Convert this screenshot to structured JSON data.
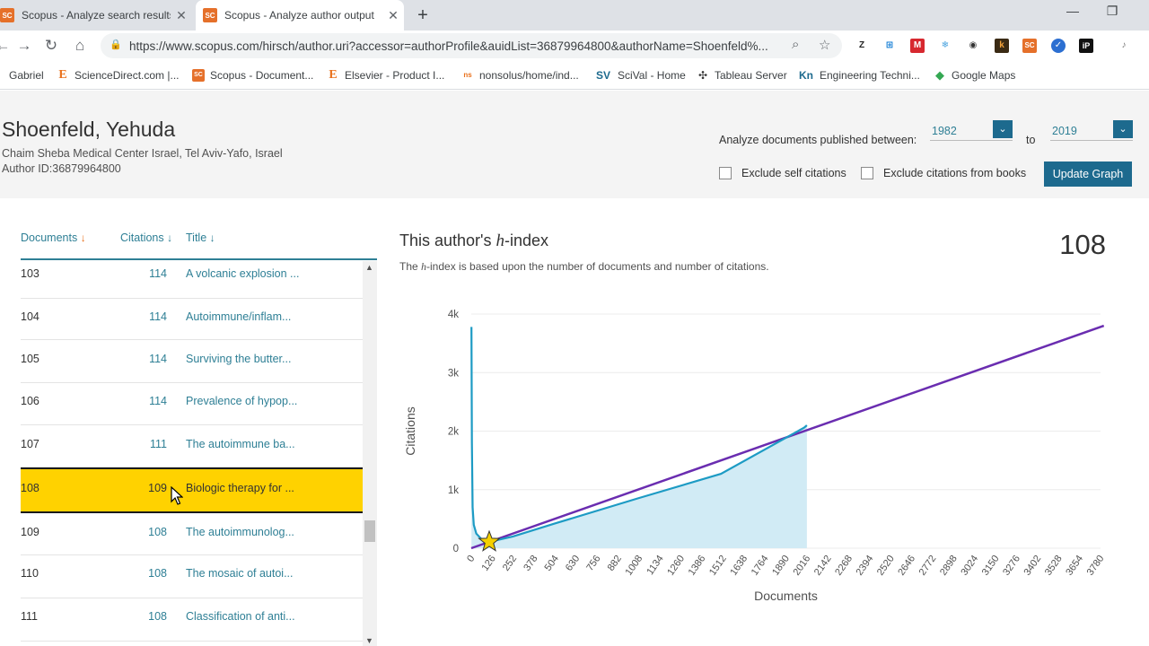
{
  "browser": {
    "tabs": [
      {
        "title": "Scopus - Analyze search results | ...",
        "favicon": "SC",
        "active": false
      },
      {
        "title": "Scopus - Analyze author output",
        "favicon": "SC",
        "active": true
      }
    ],
    "url": "https://www.scopus.com/hirsch/author.uri?accessor=authorProfile&auidList=36879964800&authorName=Shoenfeld%...",
    "bookmarks": [
      {
        "label": "Gabriel",
        "icon": ""
      },
      {
        "label": "ScienceDirect.com |...",
        "icon": "E"
      },
      {
        "label": "Scopus - Document...",
        "icon": "SC"
      },
      {
        "label": "Elsevier - Product I...",
        "icon": "E"
      },
      {
        "label": "nonsolus/home/ind...",
        "icon": "ns"
      },
      {
        "label": "SciVal - Home",
        "icon": "SV"
      },
      {
        "label": "Tableau Server",
        "icon": "✣"
      },
      {
        "label": "Engineering Techni...",
        "icon": "Kn"
      },
      {
        "label": "Google Maps",
        "icon": "◆"
      }
    ],
    "extensions": [
      "Z",
      "⊞",
      "M",
      "❄",
      "◉",
      "k",
      "SC",
      "✓",
      "iP",
      "♪"
    ]
  },
  "author": {
    "name": "Shoenfeld, Yehuda",
    "affiliation": "Chaim Sheba Medical Center Israel, Tel Aviv-Yafo, Israel",
    "author_id": "Author ID:36879964800"
  },
  "filters": {
    "range_label": "Analyze documents published between:",
    "from_year": "1982",
    "to_label": "to",
    "to_year": "2019",
    "exclude_self": "Exclude self citations",
    "exclude_books": "Exclude citations from books",
    "update_button": "Update Graph"
  },
  "list": {
    "col_documents": "Documents",
    "col_citations": "Citations",
    "col_title": "Title",
    "rows": [
      {
        "rank": "103",
        "citations": "114",
        "title": "A volcanic explosion ..."
      },
      {
        "rank": "104",
        "citations": "114",
        "title": "Autoimmune/inflam..."
      },
      {
        "rank": "105",
        "citations": "114",
        "title": "Surviving the butter..."
      },
      {
        "rank": "106",
        "citations": "114",
        "title": "Prevalence of hypop..."
      },
      {
        "rank": "107",
        "citations": "111",
        "title": "The autoimmune ba..."
      },
      {
        "rank": "108",
        "citations": "109",
        "title": "Biologic therapy for ...",
        "highlighted": true
      },
      {
        "rank": "109",
        "citations": "108",
        "title": "The autoimmunolog..."
      },
      {
        "rank": "110",
        "citations": "108",
        "title": "The mosaic of autoi..."
      },
      {
        "rank": "111",
        "citations": "108",
        "title": "Classification of anti..."
      }
    ]
  },
  "chart_header": {
    "title_prefix": "This author's ",
    "title_italic": "h",
    "title_suffix": "-index",
    "subtitle_prefix": "The ",
    "subtitle_italic": "h",
    "subtitle_suffix": "-index is based upon the number of documents and number of citations.",
    "hindex_value": "108"
  },
  "chart_data": {
    "type": "line",
    "xlabel": "Documents",
    "ylabel": "Citations",
    "xlim": [
      0,
      3780
    ],
    "ylim": [
      0,
      4000
    ],
    "x_ticks": [
      0,
      126,
      252,
      378,
      504,
      630,
      756,
      882,
      1008,
      1134,
      1260,
      1386,
      1512,
      1638,
      1764,
      1890,
      2016,
      2142,
      2268,
      2394,
      2520,
      2646,
      2772,
      2898,
      3024,
      3150,
      3276,
      3402,
      3528,
      3654,
      3780
    ],
    "y_ticks": [
      {
        "value": 0,
        "label": "0"
      },
      {
        "value": 1000,
        "label": "1k"
      },
      {
        "value": 2000,
        "label": "2k"
      },
      {
        "value": 3000,
        "label": "3k"
      },
      {
        "value": 4000,
        "label": "4k"
      }
    ],
    "series": [
      {
        "role": "citations",
        "color": "#1d9bc4",
        "fill": "#d1ebf5",
        "points": [
          [
            1,
            3780
          ],
          [
            4,
            1800
          ],
          [
            8,
            700
          ],
          [
            15,
            400
          ],
          [
            30,
            250
          ],
          [
            60,
            160
          ],
          [
            108,
            108
          ],
          [
            250,
            200
          ],
          [
            500,
            420
          ],
          [
            1000,
            850
          ],
          [
            1500,
            1270
          ],
          [
            2000,
            2060
          ],
          [
            2016,
            2100
          ]
        ]
      },
      {
        "role": "diagonal",
        "color": "#6a2db0",
        "points": [
          [
            0,
            0
          ],
          [
            3800,
            3800
          ]
        ]
      }
    ],
    "h_index_marker": {
      "x": 108,
      "y": 108,
      "color": "#f5d000"
    }
  }
}
